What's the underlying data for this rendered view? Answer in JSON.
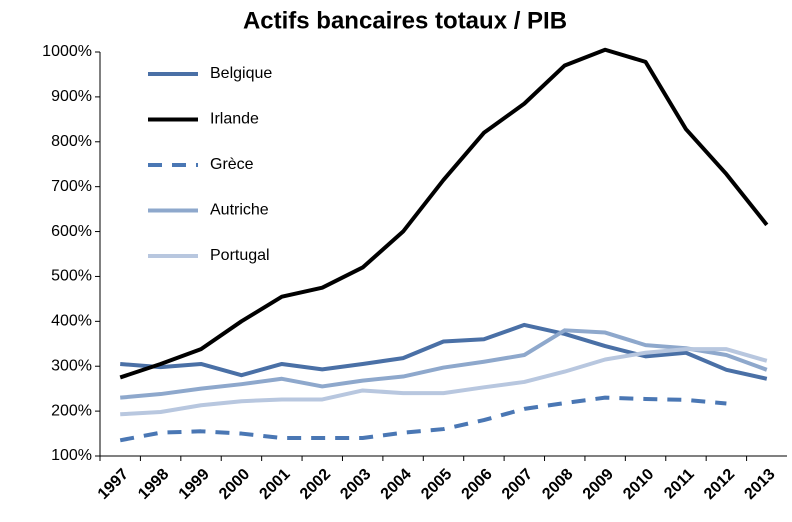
{
  "chart_data": {
    "type": "line",
    "title": "Actifs bancaires totaux / PIB",
    "categories": [
      "1997",
      "1998",
      "1999",
      "2000",
      "2001",
      "2002",
      "2003",
      "2004",
      "2005",
      "2006",
      "2007",
      "2008",
      "2009",
      "2010",
      "2011",
      "2012",
      "2013"
    ],
    "series": [
      {
        "name": "Belgique",
        "color": "#4a70a6",
        "dash": false,
        "values": [
          305,
          298,
          305,
          280,
          305,
          293,
          305,
          318,
          355,
          360,
          392,
          372,
          345,
          322,
          330,
          292,
          272
        ]
      },
      {
        "name": "Irlande",
        "color": "#000000",
        "dash": false,
        "values": [
          275,
          305,
          338,
          400,
          455,
          475,
          520,
          600,
          715,
          820,
          885,
          970,
          1005,
          978,
          828,
          728,
          615
        ]
      },
      {
        "name": "Grèce",
        "color": "#4a77b4",
        "dash": true,
        "values": [
          135,
          152,
          155,
          150,
          140,
          140,
          140,
          152,
          160,
          180,
          205,
          218,
          230,
          227,
          225,
          217,
          null
        ]
      },
      {
        "name": "Autriche",
        "color": "#8ea8cc",
        "dash": false,
        "values": [
          230,
          238,
          250,
          260,
          272,
          255,
          268,
          277,
          297,
          310,
          325,
          380,
          375,
          347,
          340,
          325,
          292
        ]
      },
      {
        "name": "Portugal",
        "color": "#b8c7df",
        "dash": false,
        "values": [
          193,
          198,
          213,
          222,
          226,
          226,
          246,
          240,
          240,
          253,
          265,
          288,
          315,
          330,
          338,
          338,
          312
        ]
      }
    ],
    "ylim": [
      100,
      1000
    ],
    "yticks": [
      {
        "value": 100,
        "label": "100%"
      },
      {
        "value": 200,
        "label": "200%"
      },
      {
        "value": 300,
        "label": "300%"
      },
      {
        "value": 400,
        "label": "400%"
      },
      {
        "value": 500,
        "label": "500%"
      },
      {
        "value": 600,
        "label": "600%"
      },
      {
        "value": 700,
        "label": "700%"
      },
      {
        "value": 800,
        "label": "800%"
      },
      {
        "value": 900,
        "label": "900%"
      },
      {
        "value": 1000,
        "label": "1000%"
      }
    ],
    "grid": false,
    "legend": "upper left"
  }
}
